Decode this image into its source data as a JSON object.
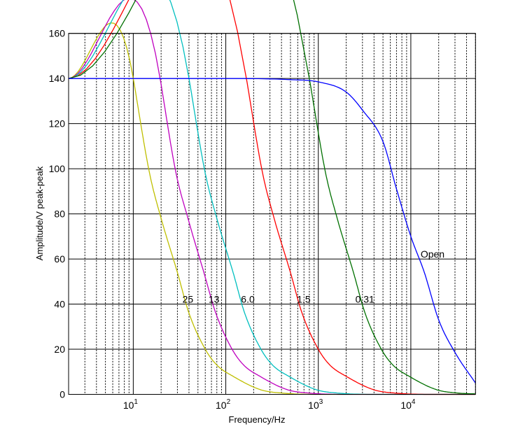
{
  "chart_data": {
    "type": "line",
    "title": "",
    "xlabel": "Frequency/Hz",
    "ylabel": "Amplitude/V peak-peak",
    "xscale": "log",
    "xlim": [
      2,
      50000
    ],
    "ylim": [
      0,
      160
    ],
    "grid": {
      "major": "solid",
      "minor_x": "dotted"
    },
    "yticks": [
      0,
      20,
      40,
      60,
      80,
      100,
      120,
      140,
      160
    ],
    "xticks": [
      {
        "value": 10,
        "base": "10",
        "exp": "1"
      },
      {
        "value": 100,
        "base": "10",
        "exp": "2"
      },
      {
        "value": 1000,
        "base": "10",
        "exp": "3"
      },
      {
        "value": 10000,
        "base": "10",
        "exp": "4"
      }
    ],
    "series": [
      {
        "color": "#bfbf00",
        "x": [
          2,
          10,
          15,
          20,
          30,
          40,
          60,
          80,
          120,
          240,
          400,
          1000,
          50000
        ],
        "y": [
          140,
          140,
          98,
          78,
          54,
          36,
          20,
          13,
          8,
          2,
          0.6,
          0,
          0
        ]
      },
      {
        "color": "#bf00bf",
        "x": [
          2,
          19.5,
          29,
          39,
          58,
          78,
          117,
          156,
          234,
          468,
          780,
          1950,
          50000
        ],
        "y": [
          140,
          140,
          98,
          78,
          54,
          36,
          20,
          13,
          8,
          2,
          0.6,
          0,
          0
        ]
      },
      {
        "color": "#00bfbf",
        "x": [
          2,
          40,
          60,
          80,
          120,
          160,
          240,
          320,
          480,
          960,
          1600,
          4000,
          50000
        ],
        "y": [
          140,
          140,
          98,
          78,
          54,
          36,
          20,
          13,
          8,
          2,
          0.6,
          0,
          0
        ]
      },
      {
        "color": "#ff0000",
        "x": [
          2,
          167,
          250,
          333,
          500,
          667,
          1000,
          1333,
          2000,
          4000,
          6670,
          16700,
          50000
        ],
        "y": [
          140,
          140,
          98,
          78,
          54,
          36,
          20,
          13,
          8,
          2,
          0.6,
          0,
          0
        ]
      },
      {
        "color": "#007000",
        "x": [
          2,
          800,
          1200,
          1600,
          2400,
          3200,
          4800,
          6400,
          9600,
          19200,
          32000,
          50000
        ],
        "y": [
          140,
          140,
          98,
          78,
          54,
          36,
          20,
          13,
          8,
          2,
          0.6,
          0.2
        ]
      },
      {
        "color": "#0000ff",
        "x": [
          2,
          100,
          500,
          1000,
          2000,
          3000,
          5000,
          7000,
          10000,
          14000,
          20000,
          30000,
          50000
        ],
        "y": [
          140,
          140,
          139.5,
          138.5,
          134,
          126,
          112,
          91,
          70,
          54,
          33,
          18.6,
          5
        ]
      }
    ],
    "annotations": [
      {
        "text": "25",
        "x": 34,
        "y": 40
      },
      {
        "text": "13",
        "x": 65,
        "y": 40
      },
      {
        "text": "6.0",
        "x": 146,
        "y": 40
      },
      {
        "text": "1.5",
        "x": 588,
        "y": 40
      },
      {
        "text": "0.31",
        "x": 2510,
        "y": 40
      },
      {
        "text": "Open",
        "x": 12750,
        "y": 60
      }
    ]
  }
}
